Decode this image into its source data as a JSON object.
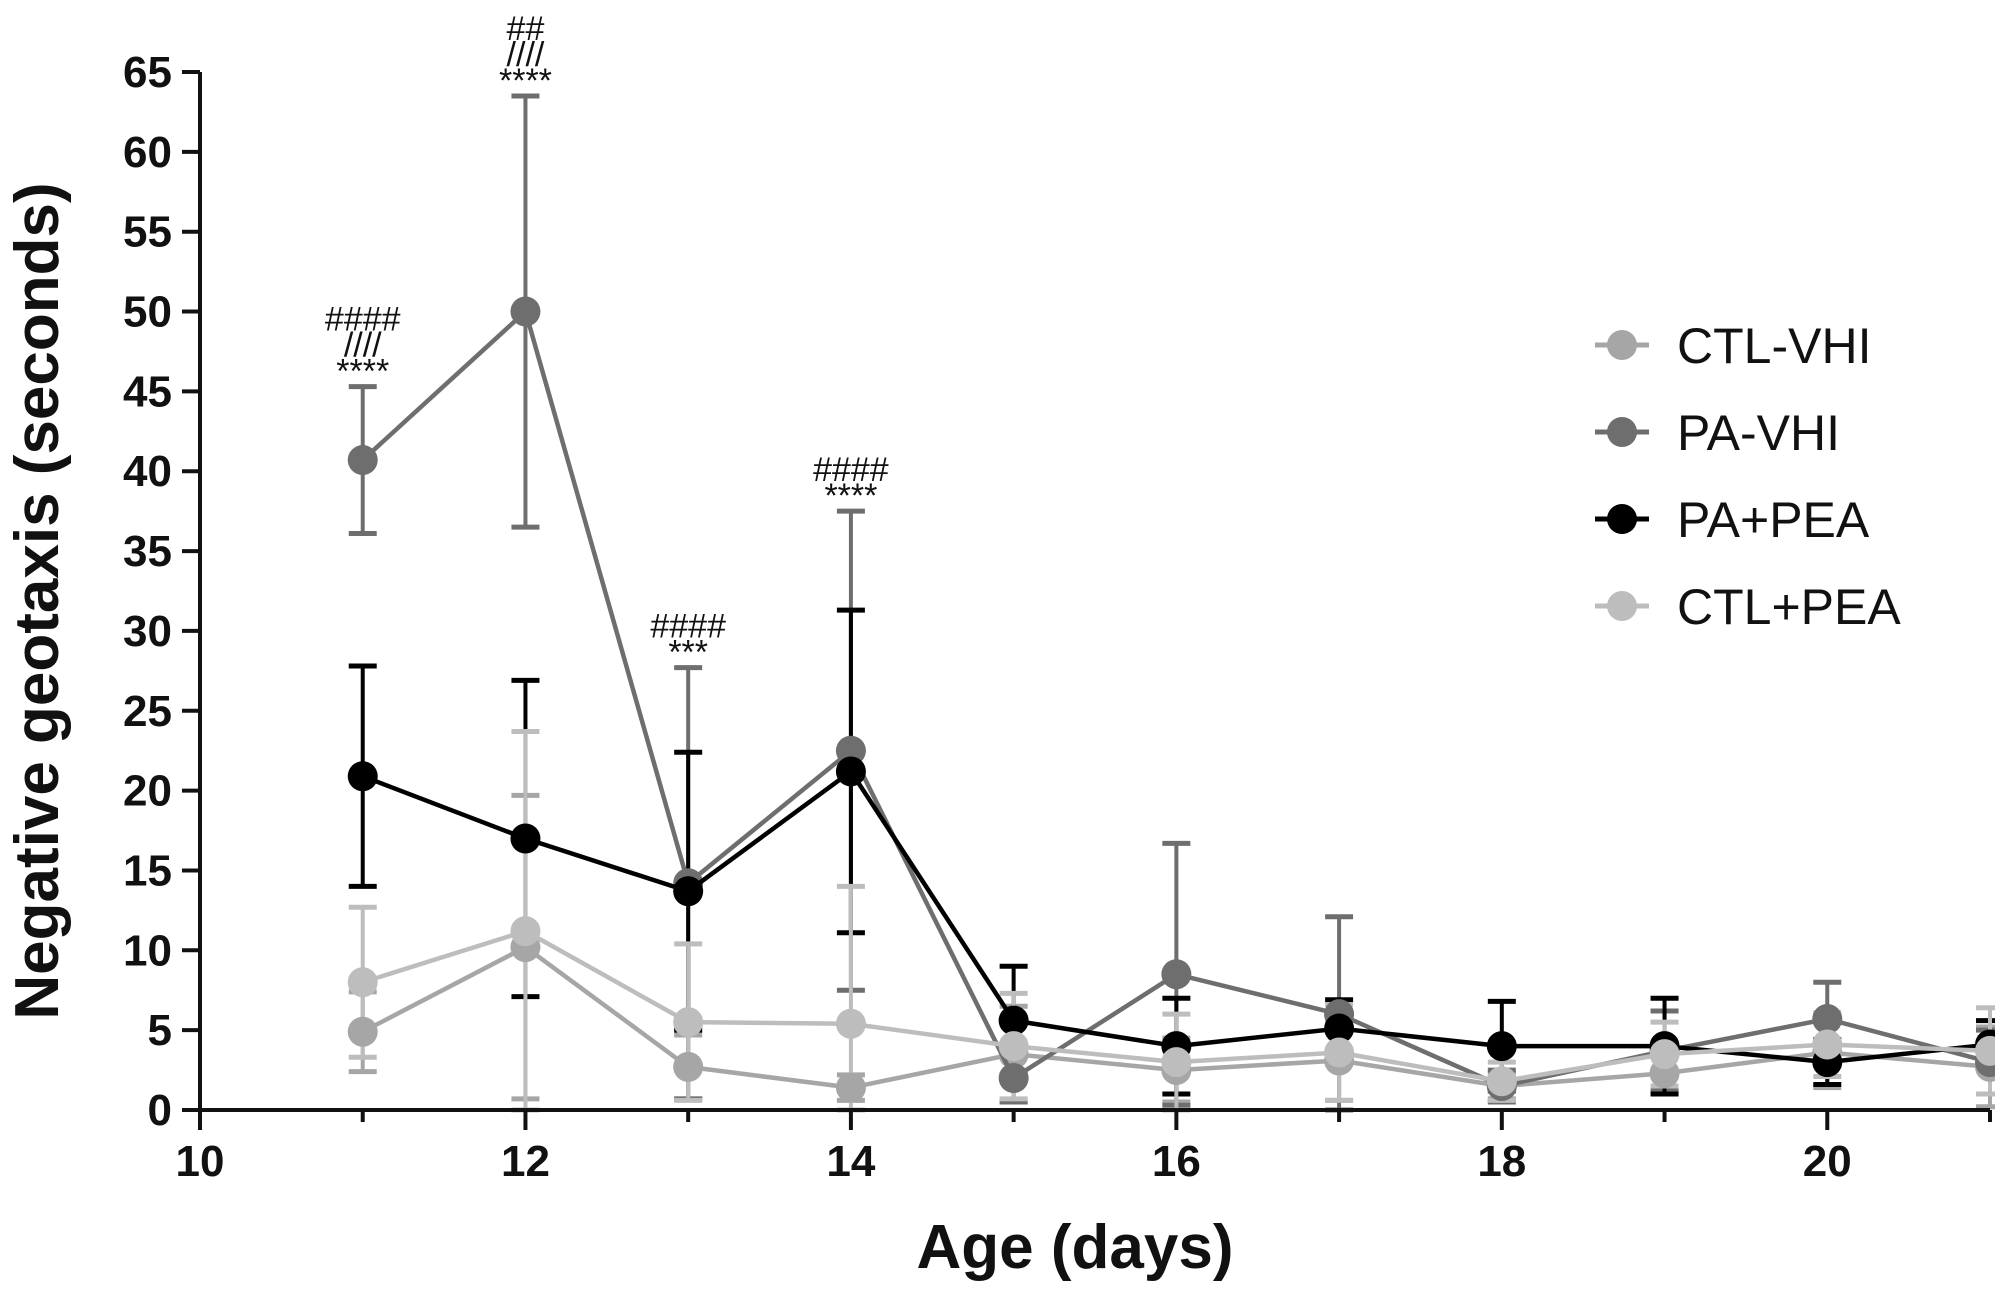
{
  "chart_data": {
    "type": "line",
    "title": "",
    "xlabel": "Age (days)",
    "ylabel": "Negative geotaxis (seconds)",
    "xlim": [
      10,
      21
    ],
    "ylim": [
      0,
      65
    ],
    "x_ticks": [
      "10",
      "12",
      "14",
      "16",
      "18",
      "20"
    ],
    "y_ticks": [
      "0",
      "5",
      "10",
      "15",
      "20",
      "25",
      "30",
      "35",
      "40",
      "45",
      "50",
      "55",
      "60",
      "65"
    ],
    "x": [
      11,
      12,
      13,
      14,
      15,
      16,
      17,
      18,
      19,
      20,
      21
    ],
    "legend_position": "right",
    "series": [
      {
        "name": "CTL-VHI",
        "color": "#a6a6a6",
        "values": [
          4.9,
          10.2,
          2.7,
          1.4,
          3.5,
          2.5,
          3.1,
          1.5,
          2.3,
          3.6,
          2.7
        ],
        "errors": [
          2.5,
          9.5,
          2.0,
          0.8,
          3.0,
          2.0,
          2.5,
          0.8,
          1.2,
          2.2,
          2.5
        ]
      },
      {
        "name": "PA-VHI",
        "color": "#6e6e6e",
        "values": [
          40.7,
          50.0,
          14.2,
          22.5,
          2.0,
          8.5,
          6.0,
          1.5,
          3.7,
          5.7,
          3.0
        ],
        "errors": [
          4.6,
          13.5,
          13.5,
          15.0,
          1.5,
          8.2,
          6.1,
          1.0,
          2.5,
          2.3,
          2.0
        ]
      },
      {
        "name": "PA+PEA",
        "color": "#000000",
        "values": [
          20.9,
          17.0,
          13.7,
          21.2,
          5.6,
          4.0,
          5.1,
          4.0,
          4.0,
          3.0,
          4.1
        ],
        "errors": [
          6.9,
          9.9,
          8.7,
          10.1,
          3.4,
          3.0,
          1.8,
          2.8,
          3.0,
          1.4,
          1.5
        ]
      },
      {
        "name": "CTL+PEA",
        "color": "#bdbdbd",
        "values": [
          8.0,
          11.2,
          5.5,
          5.4,
          4.0,
          3.0,
          3.6,
          1.8,
          3.5,
          4.1,
          3.7
        ],
        "errors": [
          4.7,
          12.5,
          4.9,
          8.6,
          3.3,
          3.0,
          3.0,
          1.2,
          2.0,
          2.0,
          2.7
        ]
      }
    ],
    "annotations": [
      {
        "x": 11,
        "lines": [
          "####",
          "////",
          "****"
        ]
      },
      {
        "x": 12,
        "lines": [
          "##",
          "////",
          "****"
        ]
      },
      {
        "x": 13,
        "lines": [
          "####",
          "***"
        ]
      },
      {
        "x": 14,
        "lines": [
          "####",
          "****"
        ]
      }
    ]
  }
}
